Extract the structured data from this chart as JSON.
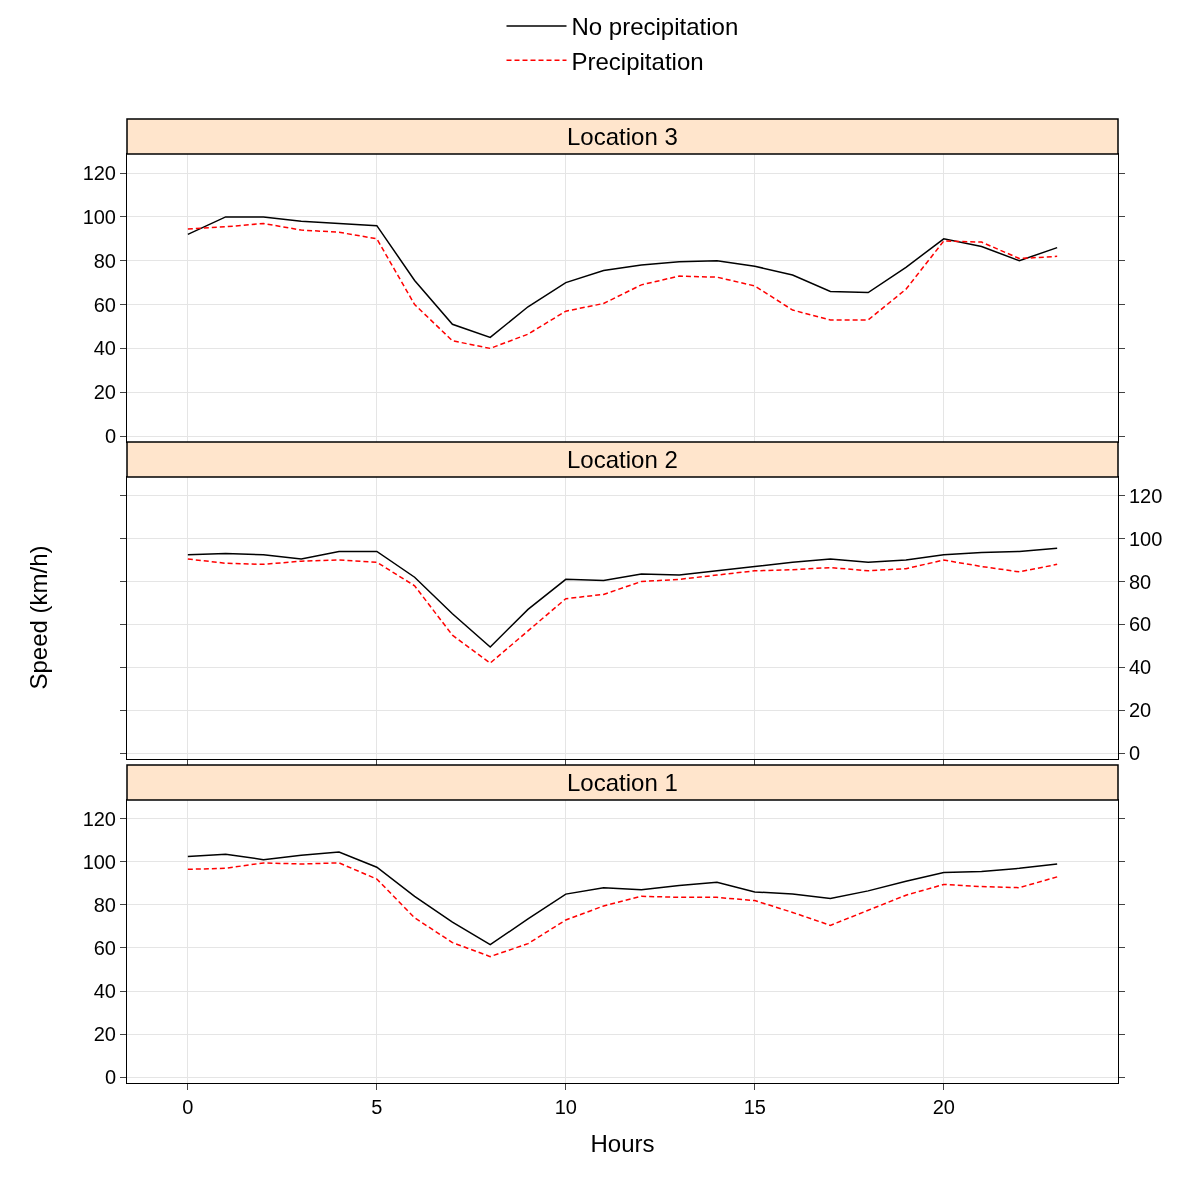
{
  "chart_data": [
    {
      "type": "line",
      "title": "Location 3",
      "x": [
        0,
        1,
        2,
        3,
        4,
        5,
        6,
        7,
        8,
        9,
        10,
        11,
        12,
        13,
        14,
        15,
        16,
        17,
        18,
        19,
        20,
        21,
        22,
        23
      ],
      "xlim": [
        -1.61,
        24.61
      ],
      "xticks": [
        0,
        5,
        10,
        15,
        20
      ],
      "ylim": [
        -2.7,
        128.7
      ],
      "yticks": [
        0,
        20,
        40,
        60,
        80,
        100,
        120
      ],
      "grid": true,
      "legend": "top",
      "tick_labels": "y",
      "series": [
        {
          "name": "No precipitation",
          "color": "#000000",
          "line_style": "solid",
          "values": [
            92,
            100,
            100,
            98,
            97,
            96,
            71,
            51,
            45,
            59,
            70,
            75.5,
            78,
            79.5,
            80,
            77.5,
            73.5,
            66,
            65.5,
            77,
            90,
            86.5,
            80,
            86
          ]
        },
        {
          "name": "Precipitation",
          "color": "#ff0000",
          "line_style": "dashed",
          "values": [
            94.5,
            95.5,
            97,
            94,
            93,
            90,
            60,
            43.5,
            40,
            46.5,
            57,
            60.5,
            69,
            73,
            72.5,
            68.5,
            57.5,
            53,
            53,
            67,
            89,
            88.5,
            81,
            82
          ]
        }
      ]
    },
    {
      "type": "line",
      "title": "Location 2",
      "x": [
        0,
        1,
        2,
        3,
        4,
        5,
        6,
        7,
        8,
        9,
        10,
        11,
        12,
        13,
        14,
        15,
        16,
        17,
        18,
        19,
        20,
        21,
        22,
        23
      ],
      "xlim": [
        -1.61,
        24.61
      ],
      "xticks": [
        0,
        5,
        10,
        15,
        20
      ],
      "ylim": [
        -2.7,
        128.7
      ],
      "yticks": [
        0,
        20,
        40,
        60,
        80,
        100,
        120
      ],
      "grid": true,
      "ylabel": "Speed (km/h)",
      "tick_labels": "y",
      "series": [
        {
          "color": "#000000",
          "line_style": "solid",
          "values": [
            92.5,
            93,
            92.5,
            90.5,
            94,
            94,
            82,
            65,
            49.5,
            67,
            81,
            80.5,
            83.5,
            83,
            85,
            87,
            89,
            90.5,
            89,
            90,
            92.5,
            93.5,
            94,
            95.5
          ]
        },
        {
          "color": "#ff0000",
          "line_style": "dashed",
          "values": [
            90.5,
            88.5,
            88,
            89.5,
            90,
            89,
            78,
            55,
            42,
            57,
            72,
            74,
            80,
            81,
            83,
            85,
            85.5,
            86.5,
            85,
            86,
            90,
            87,
            84.5,
            88
          ]
        }
      ]
    },
    {
      "type": "line",
      "title": "Location 1",
      "x": [
        0,
        1,
        2,
        3,
        4,
        5,
        6,
        7,
        8,
        9,
        10,
        11,
        12,
        13,
        14,
        15,
        16,
        17,
        18,
        19,
        20,
        21,
        22,
        23
      ],
      "xlim": [
        -1.61,
        24.61
      ],
      "xticks": [
        0,
        5,
        10,
        15,
        20
      ],
      "ylim": [
        -2.7,
        128.7
      ],
      "yticks": [
        0,
        20,
        40,
        60,
        80,
        100,
        120
      ],
      "grid": true,
      "xlabel": "Hours",
      "series": [
        {
          "color": "#000000",
          "line_style": "solid",
          "values": [
            102.5,
            103.5,
            101,
            103,
            104.5,
            97.5,
            84,
            72,
            61.5,
            73.5,
            85,
            88,
            87,
            89,
            90.5,
            86,
            85,
            83,
            86.5,
            91,
            95,
            95.5,
            97,
            99
          ]
        },
        {
          "color": "#ff0000",
          "line_style": "dashed",
          "values": [
            96.5,
            97,
            99.5,
            99,
            99.5,
            92,
            74,
            62.5,
            56,
            62,
            73,
            79.5,
            84,
            83.5,
            83.5,
            82,
            76.5,
            70.5,
            77.5,
            84.5,
            89.5,
            88.5,
            88,
            93
          ]
        }
      ]
    }
  ]
}
